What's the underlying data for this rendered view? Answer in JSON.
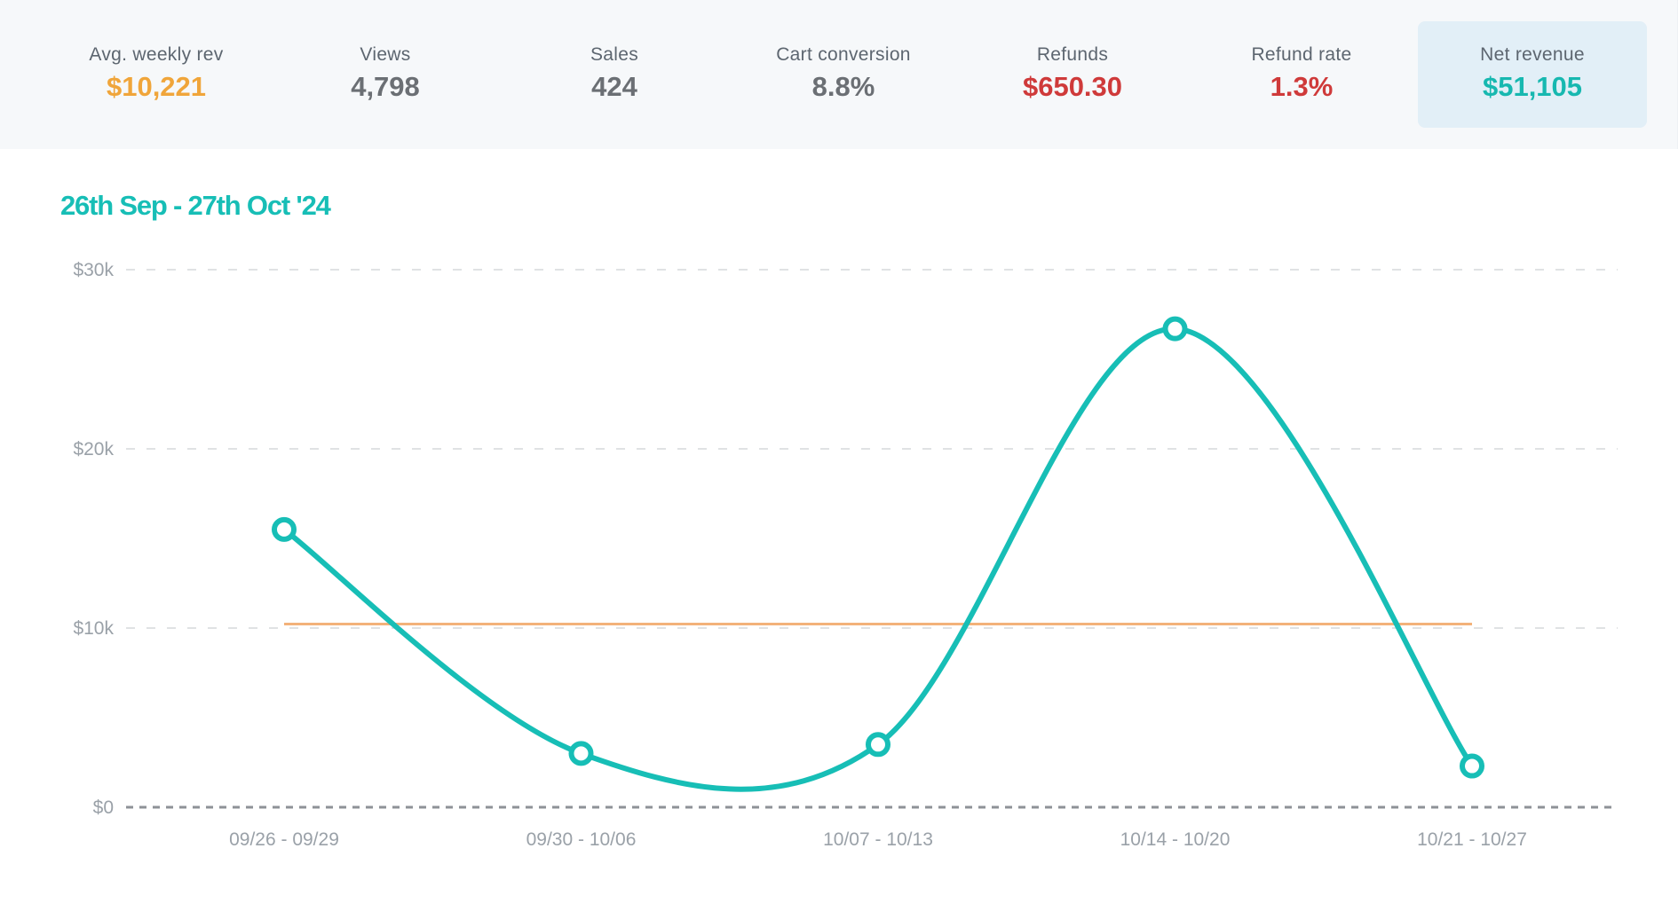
{
  "stats": [
    {
      "label": "Avg. weekly rev",
      "value": "$10,221",
      "color": "#f0a53a",
      "highlighted": false
    },
    {
      "label": "Views",
      "value": "4,798",
      "color": "#6b6f74",
      "highlighted": false
    },
    {
      "label": "Sales",
      "value": "424",
      "color": "#6b6f74",
      "highlighted": false
    },
    {
      "label": "Cart conversion",
      "value": "8.8%",
      "color": "#6b6f74",
      "highlighted": false
    },
    {
      "label": "Refunds",
      "value": "$650.30",
      "color": "#cf3a3a",
      "highlighted": false
    },
    {
      "label": "Refund rate",
      "value": "1.3%",
      "color": "#cf3a3a",
      "highlighted": false
    },
    {
      "label": "Net revenue",
      "value": "$51,105",
      "color": "#17b8b0",
      "highlighted": true
    }
  ],
  "colors": {
    "accent": "#17beb6",
    "average_line": "#f3b27a",
    "grid": "#d5d8dc",
    "zero_line": "#8e9297"
  },
  "chart_data": {
    "type": "line",
    "title": "26th Sep - 27th Oct '24",
    "categories": [
      "09/26 - 09/29",
      "09/30 - 10/06",
      "10/07 - 10/13",
      "10/14 - 10/20",
      "10/21 - 10/27"
    ],
    "series": [
      {
        "values": [
          15500,
          3000,
          3500,
          26700,
          2300
        ]
      }
    ],
    "reference_line": {
      "value": 10221
    },
    "y_ticks": [
      0,
      10000,
      20000,
      30000
    ],
    "y_tick_labels": [
      "$0",
      "$10k",
      "$20k",
      "$30k"
    ],
    "ylim": [
      0,
      30000
    ],
    "grid": true,
    "curve": "smooth"
  }
}
